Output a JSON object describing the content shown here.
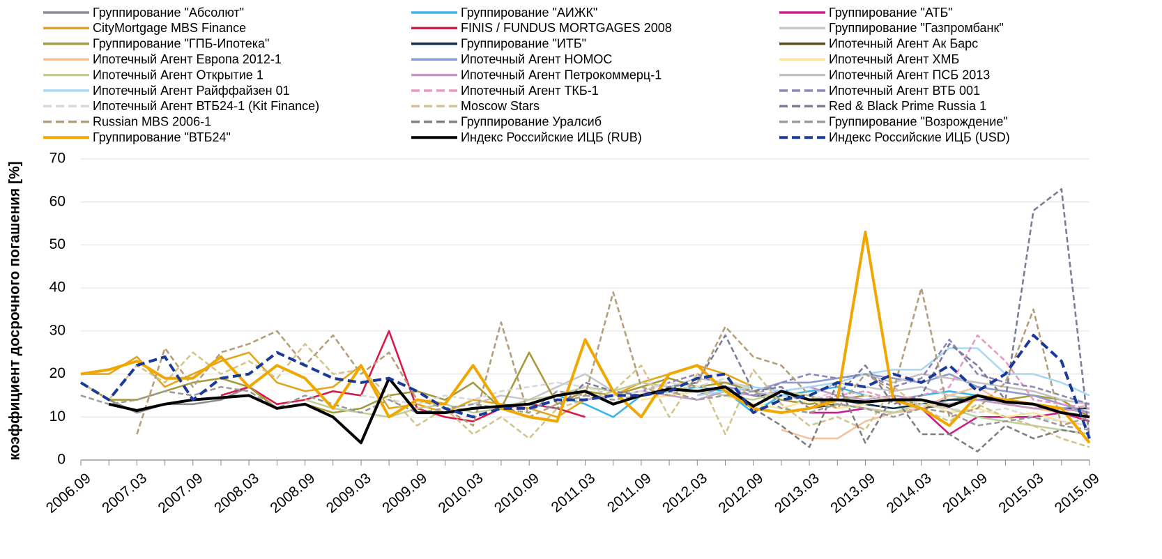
{
  "chart_data": {
    "type": "line",
    "y_label": "коэффициент досрочного погашения [%]",
    "categories": [
      "2006.09",
      null,
      "2007.03",
      null,
      "2007.09",
      null,
      "2008.03",
      null,
      "2008.09",
      null,
      "2009.03",
      null,
      "2009.09",
      null,
      "2010.03",
      null,
      "2010.09",
      null,
      "2011.03",
      null,
      "2011.09",
      null,
      "2012.03",
      null,
      "2012.09",
      null,
      "2013.03",
      null,
      "2013.09",
      null,
      "2014.03",
      null,
      "2014.09",
      null,
      "2015.03",
      null,
      "2015.09"
    ],
    "ylim": [
      0,
      70
    ],
    "yticks": [
      0,
      10,
      20,
      30,
      40,
      50,
      60,
      70
    ],
    "grid": true,
    "series": [
      {
        "name": "Группирование \"Абсолют\"",
        "color": "#8a8d93",
        "values": [
          18,
          14,
          11,
          13,
          13,
          14,
          17,
          12,
          13,
          null,
          null,
          null,
          null,
          null,
          null,
          null,
          null,
          null,
          null,
          null,
          null,
          null,
          null,
          null,
          null,
          null,
          null,
          null,
          null,
          null,
          null,
          null,
          null,
          null,
          null,
          null,
          null
        ]
      },
      {
        "name": "Группирование \"АИЖК\"",
        "color": "#3bb6ea",
        "values": [
          null,
          null,
          null,
          null,
          null,
          null,
          null,
          null,
          null,
          null,
          null,
          null,
          null,
          null,
          null,
          null,
          13,
          15,
          13,
          10,
          15,
          16,
          17,
          16,
          11,
          15,
          16,
          17,
          15,
          14,
          15,
          16,
          15,
          14,
          13,
          12,
          11
        ]
      },
      {
        "name": "Группирование \"АТБ\"",
        "color": "#cc1d8e",
        "values": [
          null,
          null,
          null,
          null,
          null,
          null,
          null,
          null,
          null,
          null,
          null,
          null,
          null,
          null,
          null,
          null,
          null,
          null,
          null,
          null,
          null,
          null,
          null,
          null,
          null,
          null,
          11,
          11,
          12,
          11,
          12,
          6,
          10,
          10,
          10,
          11,
          9
        ]
      },
      {
        "name": "CityMortgage MBS Finance",
        "color": "#e3a61b",
        "values": [
          20,
          20,
          24,
          17,
          20,
          23,
          25,
          18,
          16,
          17,
          22,
          12,
          13,
          11,
          14,
          13,
          12,
          10,
          14,
          15,
          18,
          20,
          22,
          20,
          17,
          null,
          null,
          null,
          null,
          null,
          null,
          null,
          null,
          null,
          null,
          null,
          null
        ]
      },
      {
        "name": "FINIS / FUNDUS MORTGAGES 2008",
        "color": "#d9184a",
        "values": [
          null,
          null,
          null,
          null,
          null,
          15,
          17,
          13,
          14,
          16,
          15,
          30,
          12,
          10,
          9,
          12,
          13,
          12,
          10,
          null,
          null,
          null,
          null,
          null,
          null,
          null,
          null,
          null,
          null,
          null,
          null,
          null,
          null,
          null,
          null,
          null,
          null
        ]
      },
      {
        "name": "Группирование \"Газпромбанк\"",
        "color": "#c6c8ca",
        "values": [
          null,
          null,
          null,
          null,
          null,
          null,
          null,
          null,
          null,
          null,
          null,
          null,
          null,
          null,
          13,
          15,
          14,
          17,
          20,
          16,
          18,
          17,
          19,
          18,
          17,
          16,
          15,
          18,
          17,
          16,
          17,
          15,
          14,
          14,
          13,
          12,
          11
        ]
      },
      {
        "name": "Группирование \"ГПБ-Ипотека\"",
        "color": "#a69a3c",
        "values": [
          18,
          14,
          14,
          16,
          18,
          19,
          17,
          12,
          13,
          11,
          12,
          15,
          16,
          14,
          18,
          12,
          25,
          13,
          16,
          15,
          17,
          19,
          17,
          18,
          16,
          14,
          13,
          14,
          15,
          14,
          13,
          14,
          15,
          14,
          15,
          14,
          10
        ]
      },
      {
        "name": "Группирование \"ИТБ\"",
        "color": "#0f2e4f",
        "values": [
          null,
          null,
          null,
          null,
          null,
          null,
          null,
          null,
          null,
          null,
          null,
          null,
          null,
          null,
          null,
          null,
          null,
          null,
          null,
          null,
          null,
          null,
          null,
          null,
          15,
          15,
          14,
          14,
          13,
          12,
          13,
          14,
          14,
          14,
          13,
          12,
          12
        ]
      },
      {
        "name": "Ипотечный Агент Ак Барс",
        "color": "#5f4a12",
        "values": [
          null,
          null,
          null,
          null,
          null,
          null,
          null,
          null,
          null,
          null,
          null,
          null,
          null,
          null,
          null,
          null,
          null,
          null,
          null,
          null,
          null,
          null,
          null,
          null,
          null,
          null,
          12,
          13,
          12,
          11,
          12,
          13,
          14,
          13,
          12,
          12,
          11
        ]
      },
      {
        "name": "Ипотечный Агент Европа 2012-1",
        "color": "#f6c29b",
        "values": [
          null,
          null,
          null,
          null,
          null,
          null,
          null,
          null,
          null,
          null,
          null,
          null,
          null,
          null,
          null,
          null,
          null,
          null,
          null,
          null,
          null,
          null,
          null,
          null,
          null,
          7,
          5,
          5,
          9,
          11,
          12,
          15,
          17,
          13,
          12,
          11,
          13
        ]
      },
      {
        "name": "Ипотечный Агент НОМОС",
        "color": "#8f9ccf",
        "values": [
          null,
          null,
          null,
          null,
          null,
          null,
          null,
          null,
          null,
          null,
          null,
          null,
          null,
          null,
          null,
          null,
          null,
          null,
          null,
          null,
          null,
          null,
          15,
          17,
          16,
          18,
          18,
          19,
          20,
          19,
          18,
          20,
          17,
          16,
          15,
          13,
          11
        ]
      },
      {
        "name": "Ипотечный Агент ХМБ",
        "color": "#fde69a",
        "values": [
          null,
          null,
          null,
          null,
          null,
          null,
          null,
          null,
          null,
          null,
          null,
          null,
          null,
          null,
          null,
          null,
          null,
          null,
          null,
          null,
          14,
          15,
          16,
          15,
          13,
          12,
          14,
          12,
          13,
          15,
          14,
          11,
          12,
          10,
          11,
          9,
          8
        ]
      },
      {
        "name": "Ипотечный Агент Открытие 1",
        "color": "#c0cf9b",
        "values": [
          null,
          null,
          null,
          null,
          null,
          null,
          null,
          null,
          14,
          12,
          11,
          10,
          12,
          13,
          11,
          12,
          14,
          15,
          17,
          16,
          18,
          17,
          16,
          15,
          14,
          16,
          15,
          13,
          12,
          11,
          13,
          12,
          10,
          9,
          8,
          7,
          6
        ]
      },
      {
        "name": "Ипотечный Агент Петрокоммерц-1",
        "color": "#c39bc6",
        "values": [
          null,
          null,
          null,
          null,
          null,
          null,
          null,
          null,
          null,
          null,
          null,
          null,
          null,
          null,
          null,
          null,
          null,
          null,
          14,
          15,
          16,
          15,
          14,
          16,
          15,
          16,
          17,
          15,
          14,
          15,
          14,
          13,
          14,
          13,
          12,
          12,
          11
        ]
      },
      {
        "name": "Ипотечный Агент ПСБ 2013",
        "color": "#c3c3c3",
        "values": [
          null,
          null,
          null,
          null,
          null,
          null,
          null,
          null,
          null,
          null,
          null,
          null,
          null,
          null,
          null,
          null,
          null,
          null,
          null,
          null,
          null,
          null,
          null,
          null,
          null,
          null,
          null,
          null,
          20,
          18,
          20,
          19,
          18,
          17,
          16,
          14,
          13
        ]
      },
      {
        "name": "Ипотечный Агент Райффайзен 01",
        "color": "#a9d8f3",
        "values": [
          null,
          null,
          null,
          null,
          null,
          null,
          null,
          null,
          null,
          null,
          null,
          null,
          null,
          null,
          null,
          null,
          null,
          null,
          null,
          null,
          null,
          null,
          15,
          16,
          17,
          16,
          17,
          18,
          20,
          21,
          21,
          26,
          26,
          20,
          20,
          18,
          15
        ]
      },
      {
        "name": "Ипотечный Агент ТКБ-1",
        "color": "#e99ac3",
        "dash": true,
        "values": [
          null,
          null,
          null,
          null,
          null,
          null,
          null,
          null,
          null,
          null,
          null,
          null,
          null,
          null,
          null,
          null,
          null,
          null,
          null,
          null,
          null,
          null,
          null,
          null,
          null,
          null,
          14,
          15,
          16,
          14,
          15,
          17,
          29,
          23,
          14,
          13,
          12
        ]
      },
      {
        "name": "Ипотечный Агент ВТБ 001",
        "color": "#8f87b8",
        "dash": true,
        "values": [
          null,
          null,
          null,
          null,
          null,
          null,
          null,
          null,
          null,
          null,
          null,
          null,
          null,
          null,
          null,
          null,
          null,
          null,
          null,
          null,
          16,
          18,
          20,
          17,
          15,
          18,
          20,
          19,
          20,
          17,
          19,
          28,
          20,
          18,
          17,
          15,
          13
        ]
      },
      {
        "name": "Ипотечный Агент ВТБ24-1 (Kit Finance)",
        "color": "#d9d9d9",
        "dash": true,
        "values": [
          null,
          null,
          null,
          null,
          null,
          null,
          null,
          null,
          null,
          null,
          15,
          14,
          13,
          15,
          14,
          16,
          17,
          18,
          17,
          15,
          16,
          18,
          17,
          19,
          16,
          15,
          14,
          16,
          15,
          14,
          13,
          12,
          11,
          12,
          10,
          9,
          8
        ]
      },
      {
        "name": "Moscow Stars",
        "color": "#d5c48a",
        "dash": true,
        "values": [
          18,
          14,
          22,
          18,
          25,
          20,
          23,
          19,
          27,
          20,
          21,
          15,
          8,
          12,
          6,
          10,
          5,
          12,
          14,
          16,
          22,
          10,
          20,
          6,
          21,
          13,
          8,
          10,
          7,
          17,
          12,
          9,
          13,
          10,
          8,
          5,
          3
        ]
      },
      {
        "name": "Red & Black Prime Russia 1",
        "color": "#7d7d9a",
        "dash": true,
        "values": [
          null,
          null,
          null,
          null,
          null,
          null,
          null,
          null,
          null,
          null,
          null,
          null,
          null,
          null,
          null,
          null,
          13,
          12,
          18,
          16,
          15,
          17,
          18,
          29,
          16,
          17,
          12,
          15,
          22,
          13,
          15,
          27,
          22,
          14,
          58,
          63,
          5
        ]
      },
      {
        "name": "Russian MBS 2006-1",
        "color": "#b59e7a",
        "dash": true,
        "values": [
          null,
          null,
          6,
          26,
          17,
          25,
          27,
          30,
          22,
          29,
          20,
          25,
          14,
          12,
          8,
          32,
          10,
          13,
          15,
          39,
          17,
          15,
          18,
          31,
          24,
          22,
          15,
          12,
          20,
          16,
          40,
          10,
          12,
          18,
          35,
          8,
          10
        ]
      },
      {
        "name": "Группирование Уралсиб",
        "color": "#808080",
        "dash": true,
        "values": [
          null,
          null,
          null,
          null,
          null,
          null,
          null,
          null,
          null,
          null,
          null,
          null,
          null,
          null,
          null,
          null,
          null,
          null,
          null,
          null,
          null,
          null,
          null,
          null,
          12,
          8,
          3,
          18,
          4,
          15,
          6,
          6,
          2,
          8,
          5,
          7,
          6
        ]
      },
      {
        "name": "Группирование \"Возрождение\"",
        "color": "#9c9c9c",
        "dash": true,
        "values": [
          15,
          13,
          14,
          16,
          15,
          17,
          16,
          12,
          15,
          13,
          11,
          14,
          11,
          12,
          13,
          12,
          11,
          16,
          15,
          14,
          15,
          16,
          14,
          15,
          16,
          12,
          11,
          13,
          12,
          10,
          12,
          11,
          8,
          9,
          10,
          8,
          7
        ]
      },
      {
        "name": "Группирование \"ВТБ24\"",
        "color": "#f0a800",
        "width": 4,
        "values": [
          20,
          21,
          23,
          19,
          19,
          24,
          17,
          22,
          19,
          12,
          22,
          10,
          14,
          13,
          22,
          12,
          10,
          9,
          28,
          16,
          10,
          20,
          22,
          16,
          12,
          11,
          12,
          14,
          53,
          14,
          12,
          8,
          15,
          14,
          13,
          12,
          4
        ]
      },
      {
        "name": "Индекс Российские ИЦБ (RUB)",
        "color": "#000000",
        "width": 4,
        "values": [
          null,
          13,
          11.5,
          13,
          14,
          14.5,
          15,
          12,
          13,
          10,
          4,
          19,
          11,
          11,
          12,
          12.5,
          13,
          15,
          16,
          13,
          15,
          16.5,
          16,
          17,
          12.5,
          16,
          14,
          14,
          13.5,
          14,
          14,
          12.5,
          15,
          13.5,
          13,
          11,
          10
        ]
      },
      {
        "name": "Индекс Российские ИЦБ (USD)",
        "color": "#1a3a9a",
        "width": 4,
        "dash": true,
        "values": [
          18,
          14,
          22,
          24,
          14,
          19,
          20,
          25,
          22,
          19,
          18,
          19,
          16,
          12,
          10,
          12,
          12,
          14,
          14,
          15,
          15,
          16,
          19,
          20,
          11,
          14,
          15,
          18,
          17,
          20,
          18,
          22,
          16,
          20,
          29,
          23,
          5
        ]
      }
    ]
  }
}
